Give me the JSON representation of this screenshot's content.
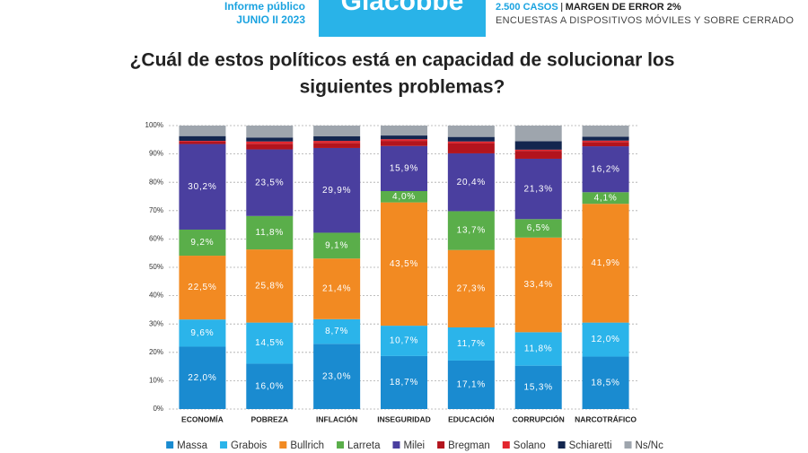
{
  "header": {
    "brand": "Giacobbe",
    "report": "Informe público",
    "date": "JUNIO II 2023",
    "cases": "2.500 CASOS",
    "margin": "MARGEN DE ERROR 2%",
    "method": "ENCUESTAS A DISPOSITIVOS MÓVILES Y SOBRE CERRADO"
  },
  "chart_data": {
    "type": "stacked_bar",
    "title": [
      "¿Cuál de estos políticos está en capacidad de solucionar los",
      "siguientes problemas?"
    ],
    "categories": [
      "ECONOMÍA",
      "POBREZA",
      "INFLACIÓN",
      "INSEGURIDAD",
      "EDUCACIÓN",
      "CORRUPCIÓN",
      "NARCOTRÁFICO"
    ],
    "ylim": [
      0,
      100
    ],
    "yticks": [
      {
        "value": 0,
        "label": "0%"
      },
      {
        "value": 10,
        "label": "10%"
      },
      {
        "value": 20,
        "label": "20%"
      },
      {
        "value": 30,
        "label": "30%"
      },
      {
        "value": 40,
        "label": "40%"
      },
      {
        "value": 50,
        "label": "50%"
      },
      {
        "value": 60,
        "label": "60%"
      },
      {
        "value": 70,
        "label": "70%"
      },
      {
        "value": 80,
        "label": "80%"
      },
      {
        "value": 90,
        "label": "90%"
      },
      {
        "value": 100,
        "label": "100%"
      }
    ],
    "grid": true,
    "legend": "bottom",
    "series": [
      {
        "name": "Massa",
        "color": "#1a8bd0",
        "values": [
          22.0,
          16.0,
          23.0,
          18.7,
          17.1,
          15.3,
          18.5
        ],
        "value_labels": [
          "22,0%",
          "16,0%",
          "23,0%",
          "18,7%",
          "17,1%",
          "15,3%",
          "18,5%"
        ]
      },
      {
        "name": "Grabois",
        "color": "#2bb4ea",
        "values": [
          9.6,
          14.5,
          8.7,
          10.7,
          11.7,
          11.8,
          12.0
        ],
        "value_labels": [
          "9,6%",
          "14,5%",
          "8,7%",
          "10,7%",
          "11,7%",
          "11,8%",
          "12,0%"
        ]
      },
      {
        "name": "Bullrich",
        "color": "#f28a22",
        "values": [
          22.5,
          25.8,
          21.4,
          43.5,
          27.3,
          33.4,
          41.9
        ],
        "value_labels": [
          "22,5%",
          "25,8%",
          "21,4%",
          "43,5%",
          "27,3%",
          "33,4%",
          "41,9%"
        ]
      },
      {
        "name": "Larreta",
        "color": "#5aae4a",
        "values": [
          9.2,
          11.8,
          9.1,
          4.0,
          13.7,
          6.5,
          4.1
        ],
        "value_labels": [
          "9,2%",
          "11,8%",
          "9,1%",
          "4,0%",
          "13,7%",
          "6,5%",
          "4,1%"
        ]
      },
      {
        "name": "Milei",
        "color": "#4a3f9f",
        "values": [
          30.2,
          23.5,
          29.9,
          15.9,
          20.4,
          21.3,
          16.2
        ],
        "value_labels": [
          "30,2%",
          "23,5%",
          "29,9%",
          "15,9%",
          "20,4%",
          "21,3%",
          "16,2%"
        ]
      },
      {
        "name": "Bregman",
        "color": "#b3141d",
        "values": [
          0.8,
          2.0,
          1.8,
          1.8,
          3.6,
          2.8,
          1.5
        ]
      },
      {
        "name": "Solano",
        "color": "#e3262e",
        "values": [
          0.3,
          0.8,
          0.7,
          0.6,
          0.6,
          0.4,
          0.5
        ]
      },
      {
        "name": "Schiaretti",
        "color": "#13264f",
        "values": [
          1.7,
          1.4,
          1.6,
          1.3,
          1.6,
          3.0,
          1.4
        ]
      },
      {
        "name": "Ns/Nc",
        "color": "#9ea5ad",
        "values": [
          3.7,
          4.2,
          3.8,
          3.5,
          4.0,
          5.5,
          3.9
        ]
      }
    ]
  }
}
